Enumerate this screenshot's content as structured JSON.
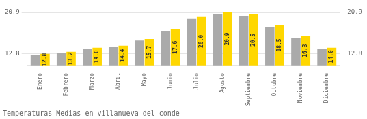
{
  "chart_data": {
    "type": "bar",
    "title": "Temperaturas Medias en villanueva del conde",
    "categories": [
      "Enero",
      "Febrero",
      "Marzo",
      "Abril",
      "Mayo",
      "Junio",
      "Julio",
      "Agosto",
      "Septiembre",
      "Octubre",
      "Noviembre",
      "Diciembre"
    ],
    "series": [
      {
        "color": "#AAAAAA",
        "values": [
          12.5,
          12.9,
          13.7,
          14.1,
          15.4,
          17.2,
          19.6,
          20.5,
          20.1,
          18.1,
          15.9,
          13.7
        ]
      },
      {
        "color": "#FFD700",
        "values": [
          12.8,
          13.2,
          14.0,
          14.4,
          15.7,
          17.6,
          20.0,
          20.9,
          20.5,
          18.5,
          16.3,
          14.0
        ],
        "value_labels": [
          "12.8",
          "13.2",
          "14.0",
          "14.4",
          "15.7",
          "17.6",
          "20.0",
          "20.9",
          "20.5",
          "18.5",
          "16.3",
          "14.0"
        ],
        "data_labels": true
      }
    ],
    "ylim": [
      10.5,
      22.2
    ],
    "yticks": [
      12.8,
      20.9
    ],
    "y2lim": [
      10.5,
      22.2
    ],
    "y2ticks": [
      12.8,
      20.9
    ],
    "grid": true
  }
}
